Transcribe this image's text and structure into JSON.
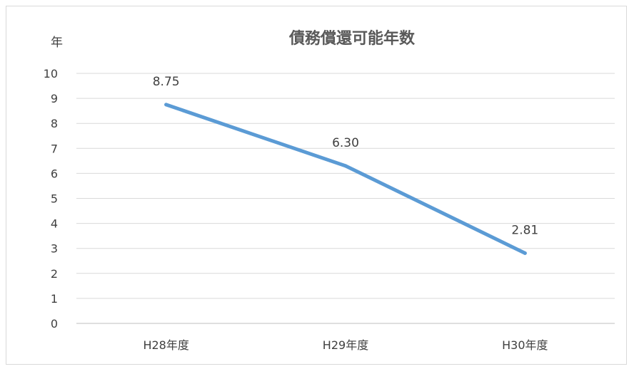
{
  "chart_data": {
    "type": "line",
    "title": "債務償還可能年数",
    "ylabel": "年",
    "xlabel": "",
    "categories": [
      "H28年度",
      "H29年度",
      "H30年度"
    ],
    "series": [
      {
        "values": [
          8.75,
          6.3,
          2.81
        ],
        "data_labels": [
          "8.75",
          "6.30",
          "2.81"
        ],
        "color": "#5b9bd5"
      }
    ],
    "ylim": [
      0,
      10
    ],
    "yticks": [
      "0",
      "1",
      "2",
      "3",
      "4",
      "5",
      "6",
      "7",
      "8",
      "9",
      "10"
    ],
    "grid": true,
    "legend": "none"
  }
}
